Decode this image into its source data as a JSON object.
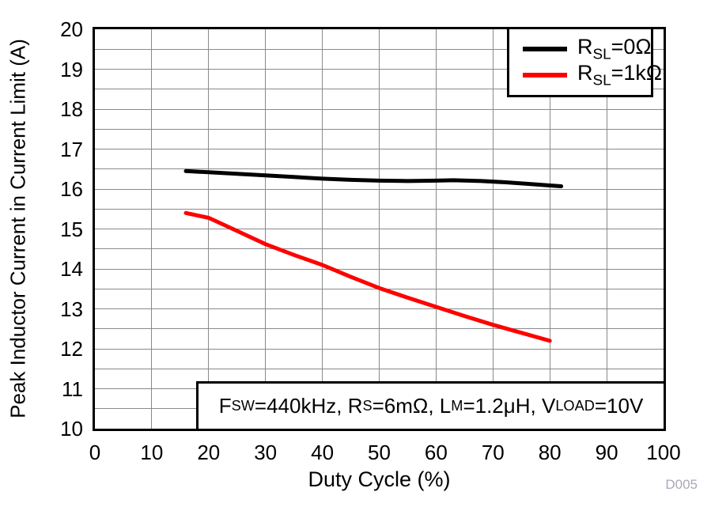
{
  "figure_id": "D005",
  "colors": {
    "grid": "#8a8a8a",
    "axis": "#000000",
    "series1": "#000000",
    "series2": "#ff0000",
    "figure_id": "#a9a9b6"
  },
  "legend": {
    "items": [
      {
        "prefix": "R",
        "sub": "SL",
        "suffix": "=0Ω",
        "color": "#000000"
      },
      {
        "prefix": "R",
        "sub": "SL",
        "suffix": "=1kΩ",
        "color": "#ff0000"
      }
    ]
  },
  "annotation": {
    "segments": [
      "F",
      "SW",
      "=440kHz, R",
      "S",
      "=6mΩ, L",
      "M",
      "=1.2μH, V",
      "LOAD",
      "=10V"
    ]
  },
  "chart_data": {
    "type": "line",
    "title": "",
    "xlabel": "Duty Cycle (%)",
    "ylabel": "Peak Inductor Current in Current Limit (A)",
    "xlim": [
      0,
      100
    ],
    "ylim": [
      10,
      20
    ],
    "x_ticks": [
      0,
      10,
      20,
      30,
      40,
      50,
      60,
      70,
      80,
      90,
      100
    ],
    "y_ticks": [
      10,
      11,
      12,
      13,
      14,
      15,
      16,
      17,
      18,
      19,
      20
    ],
    "y_minor_step": 0.5,
    "grid": "on",
    "legend_position": "top-right",
    "series": [
      {
        "name": "RSL=0Ω",
        "color": "#000000",
        "points": [
          [
            16,
            16.45
          ],
          [
            20,
            16.42
          ],
          [
            25,
            16.38
          ],
          [
            30,
            16.34
          ],
          [
            35,
            16.3
          ],
          [
            40,
            16.26
          ],
          [
            45,
            16.23
          ],
          [
            50,
            16.21
          ],
          [
            55,
            16.2
          ],
          [
            60,
            16.21
          ],
          [
            63,
            16.22
          ],
          [
            68,
            16.2
          ],
          [
            72,
            16.17
          ],
          [
            76,
            16.13
          ],
          [
            80,
            16.09
          ],
          [
            82,
            16.07
          ]
        ]
      },
      {
        "name": "RSL=1kΩ",
        "color": "#ff0000",
        "points": [
          [
            16,
            15.4
          ],
          [
            20,
            15.28
          ],
          [
            25,
            14.95
          ],
          [
            30,
            14.62
          ],
          [
            35,
            14.35
          ],
          [
            40,
            14.1
          ],
          [
            45,
            13.8
          ],
          [
            50,
            13.52
          ],
          [
            55,
            13.28
          ],
          [
            60,
            13.05
          ],
          [
            65,
            12.82
          ],
          [
            70,
            12.6
          ],
          [
            75,
            12.4
          ],
          [
            80,
            12.2
          ]
        ]
      }
    ]
  }
}
